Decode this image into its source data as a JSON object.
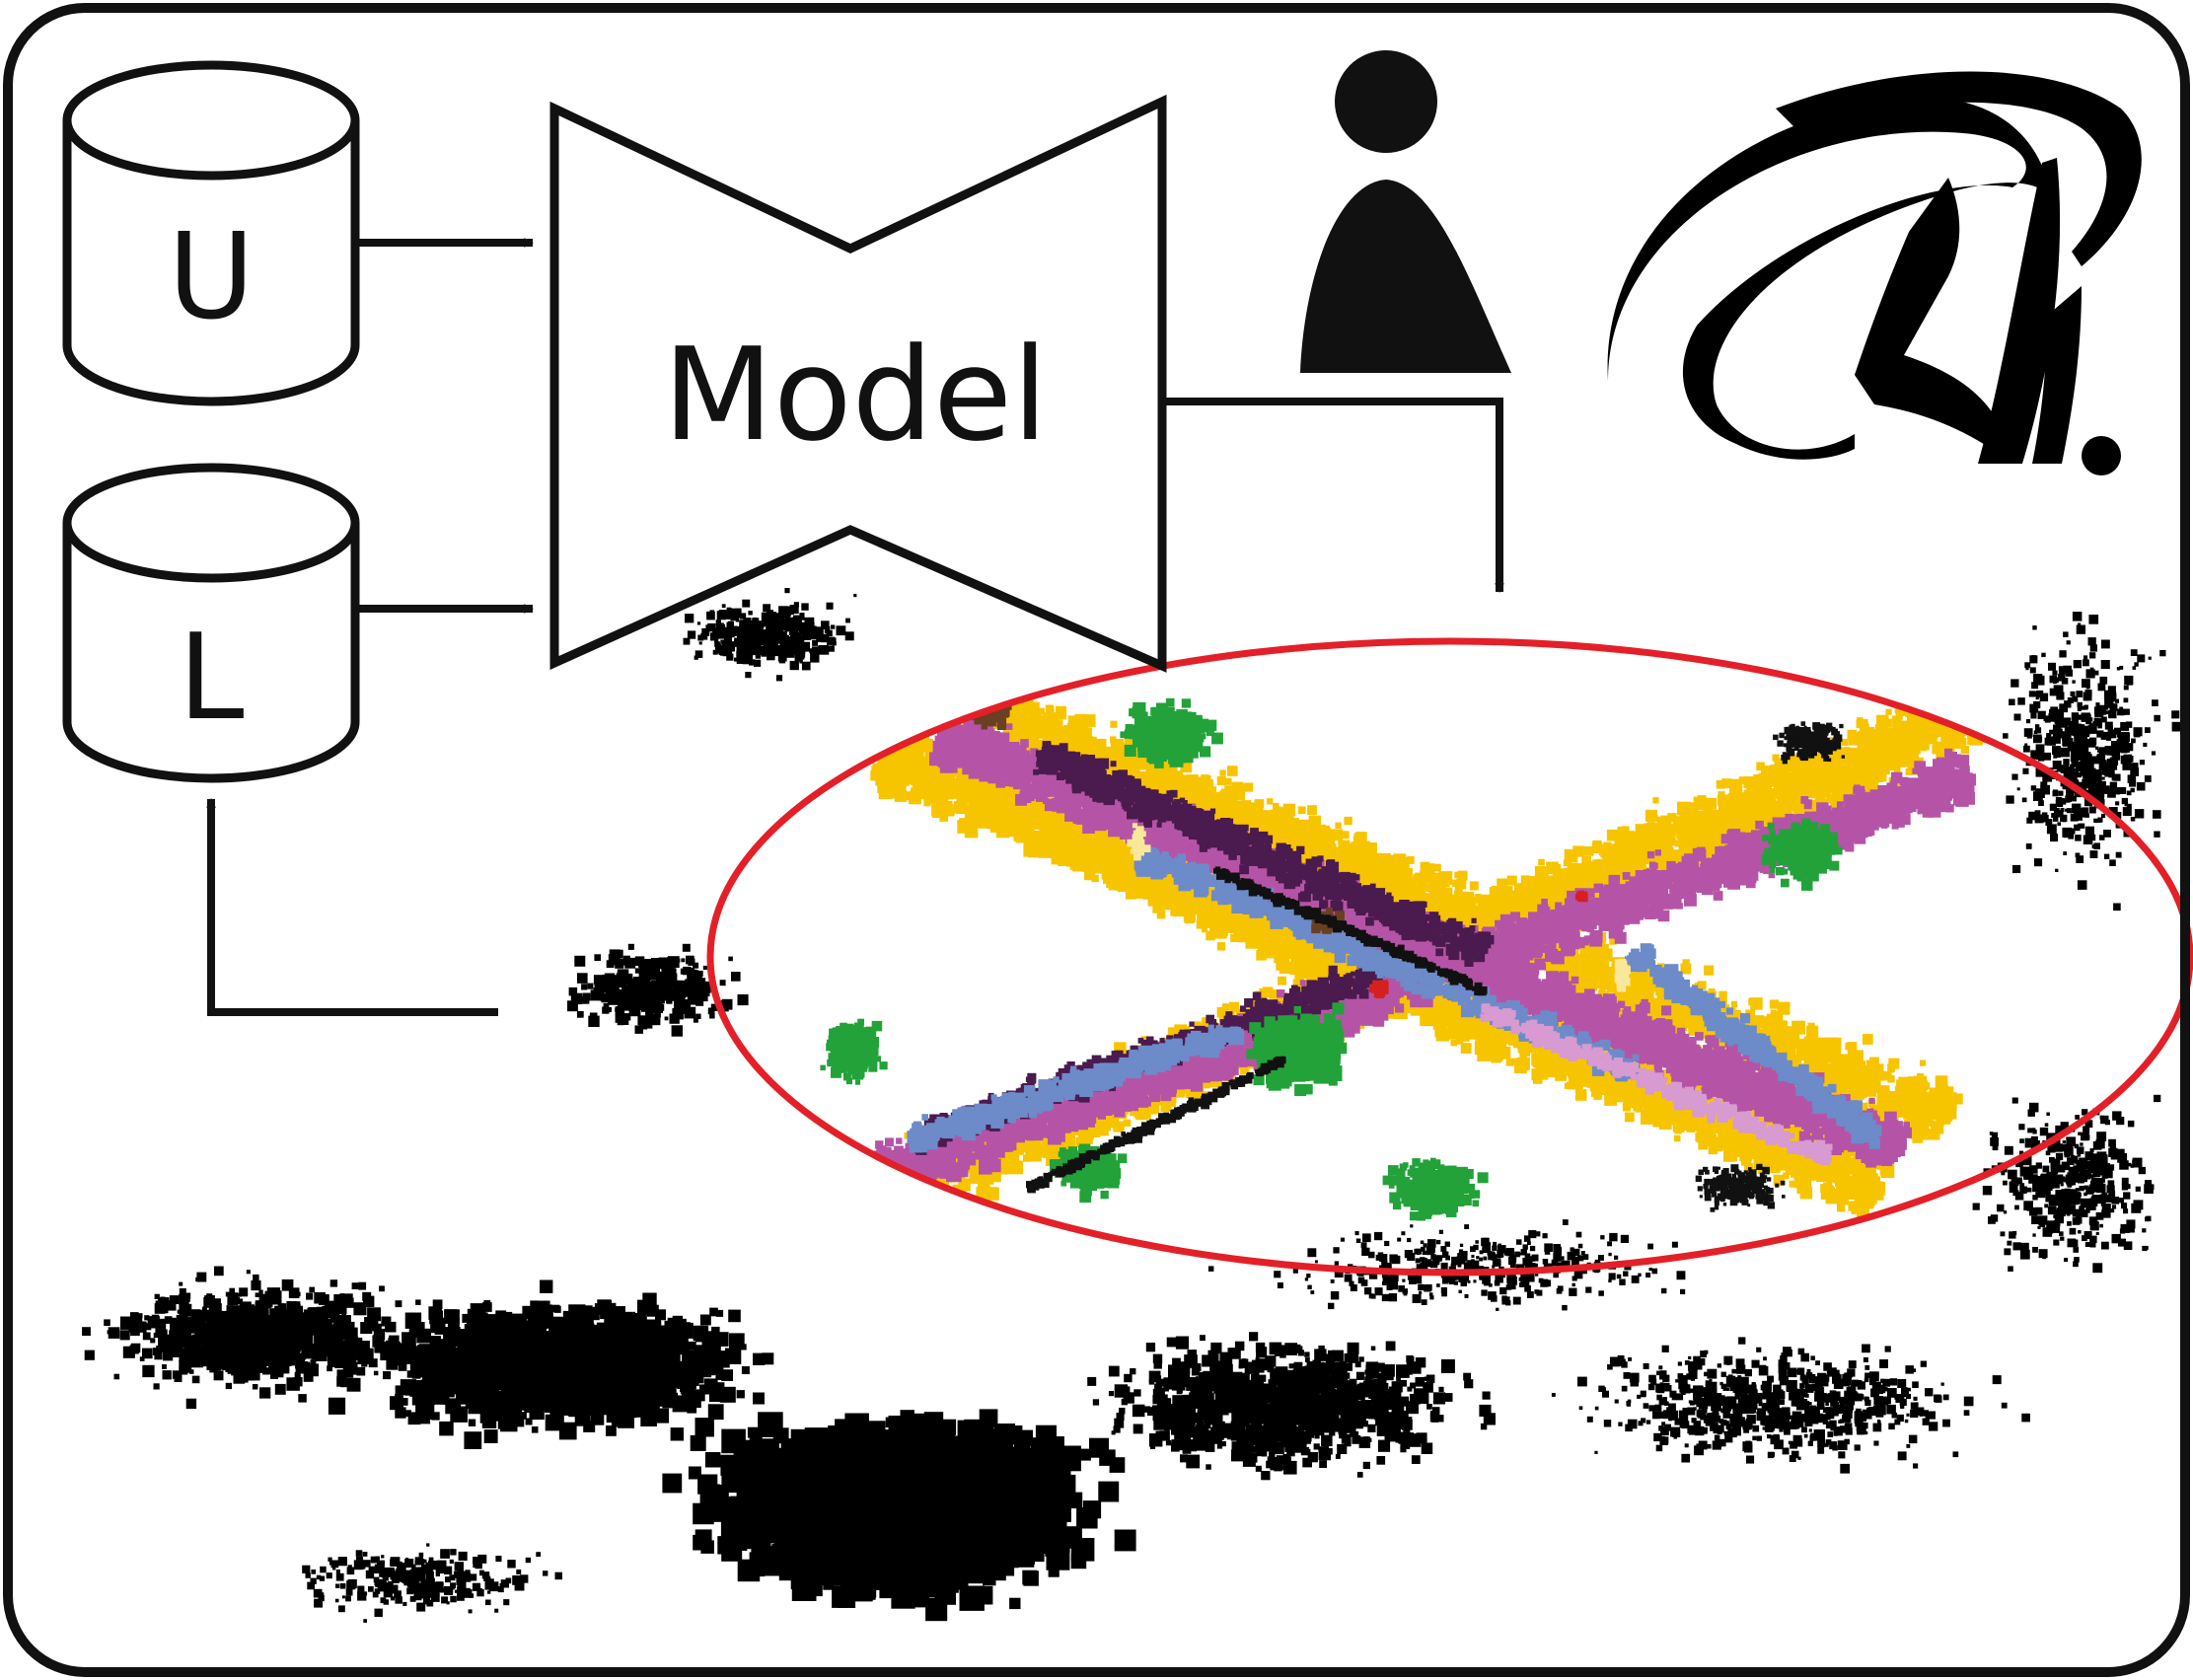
{
  "labels": {
    "unlabeled_pool": "U",
    "labeled_pool": "L",
    "model": "Model"
  },
  "icons": {
    "unlabeled": "database-icon",
    "labeled": "database-icon",
    "annotator": "person-icon",
    "logo": "logo-mark"
  },
  "colors": {
    "stroke": "#111111",
    "highlight_ellipse": "#e32028",
    "road": "#b554a6",
    "dark_road": "#4b1a4e",
    "sidewalk": "#f7c400",
    "vegetation": "#23a23a",
    "car": "#6d8bc9",
    "pink": "#d79ad1",
    "brown": "#6b3f22",
    "red_object": "#d62020",
    "light_yellow": "#f9e79a"
  }
}
